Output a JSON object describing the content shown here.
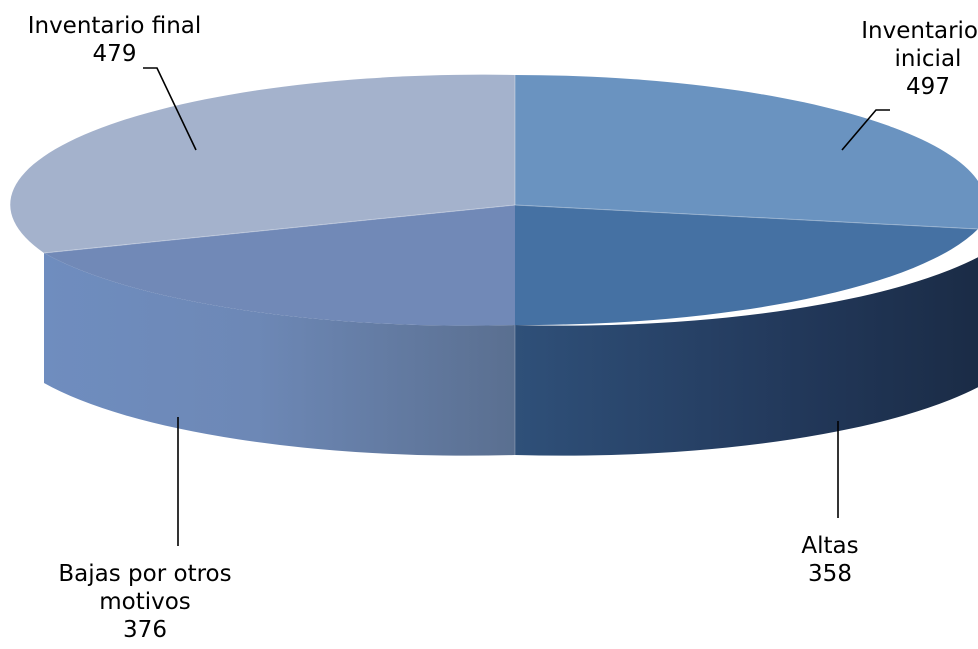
{
  "chart_data": {
    "type": "pie",
    "style": "3d",
    "slices": [
      {
        "key": "inicial",
        "label_lines": [
          "Inventario",
          "inicial"
        ],
        "value": 497,
        "color": "#6a93c0"
      },
      {
        "key": "altas",
        "label_lines": [
          "Altas"
        ],
        "value": 358,
        "color": "#4571a3"
      },
      {
        "key": "bajas",
        "label_lines": [
          "Bajas por otros",
          "motivos"
        ],
        "value": 376,
        "color": "#7189b7"
      },
      {
        "key": "final",
        "label_lines": [
          "Inventario final"
        ],
        "value": 479,
        "color": "#a4b2cc"
      }
    ]
  }
}
